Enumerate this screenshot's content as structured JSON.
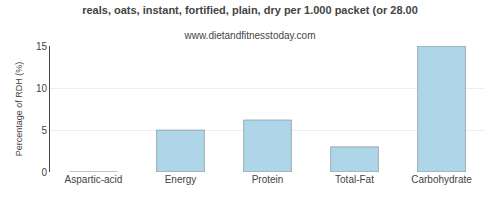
{
  "chart_data": {
    "type": "bar",
    "title": "reals, oats, instant, fortified, plain, dry per 1.000 packet (or 28.00",
    "subtitle": "www.dietandfitnesstoday.com",
    "ylabel": "Percentage of RDH (%)",
    "categories": [
      "Aspartic-acid",
      "Energy",
      "Protein",
      "Total-Fat",
      "Carbohydrate"
    ],
    "values": [
      0.0,
      5.0,
      6.2,
      3.0,
      15.0
    ],
    "color": "#aed6e8",
    "ylim": [
      0,
      15
    ],
    "yticks": [
      0,
      5,
      10,
      15
    ],
    "grid": true
  }
}
